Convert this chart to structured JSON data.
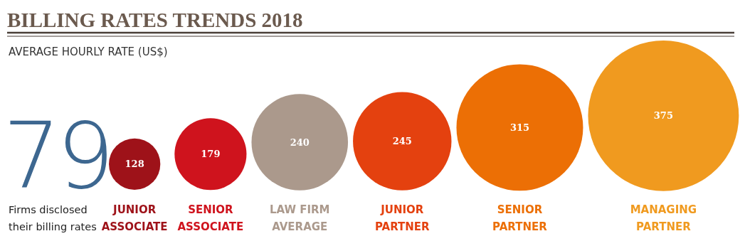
{
  "chart_data": {
    "type": "other",
    "title": "BILLING RATES TRENDS 2018",
    "subtitle": "AVERAGE HOURLY RATE (US$)",
    "categories": [
      "JUNIOR ASSOCIATE",
      "SENIOR ASSOCIATE",
      "LAW FIRM AVERAGE",
      "JUNIOR PARTNER",
      "SENIOR PARTNER",
      "MANAGING PARTNER"
    ],
    "values": [
      128,
      179,
      240,
      245,
      315,
      375
    ],
    "colors": [
      "#9e1219",
      "#cf131d",
      "#ab998c",
      "#e4410f",
      "#ec6f05",
      "#f09a1f"
    ],
    "data_labels": true,
    "annotations": [
      "79",
      "Firms disclosed their billing rates"
    ]
  }
}
